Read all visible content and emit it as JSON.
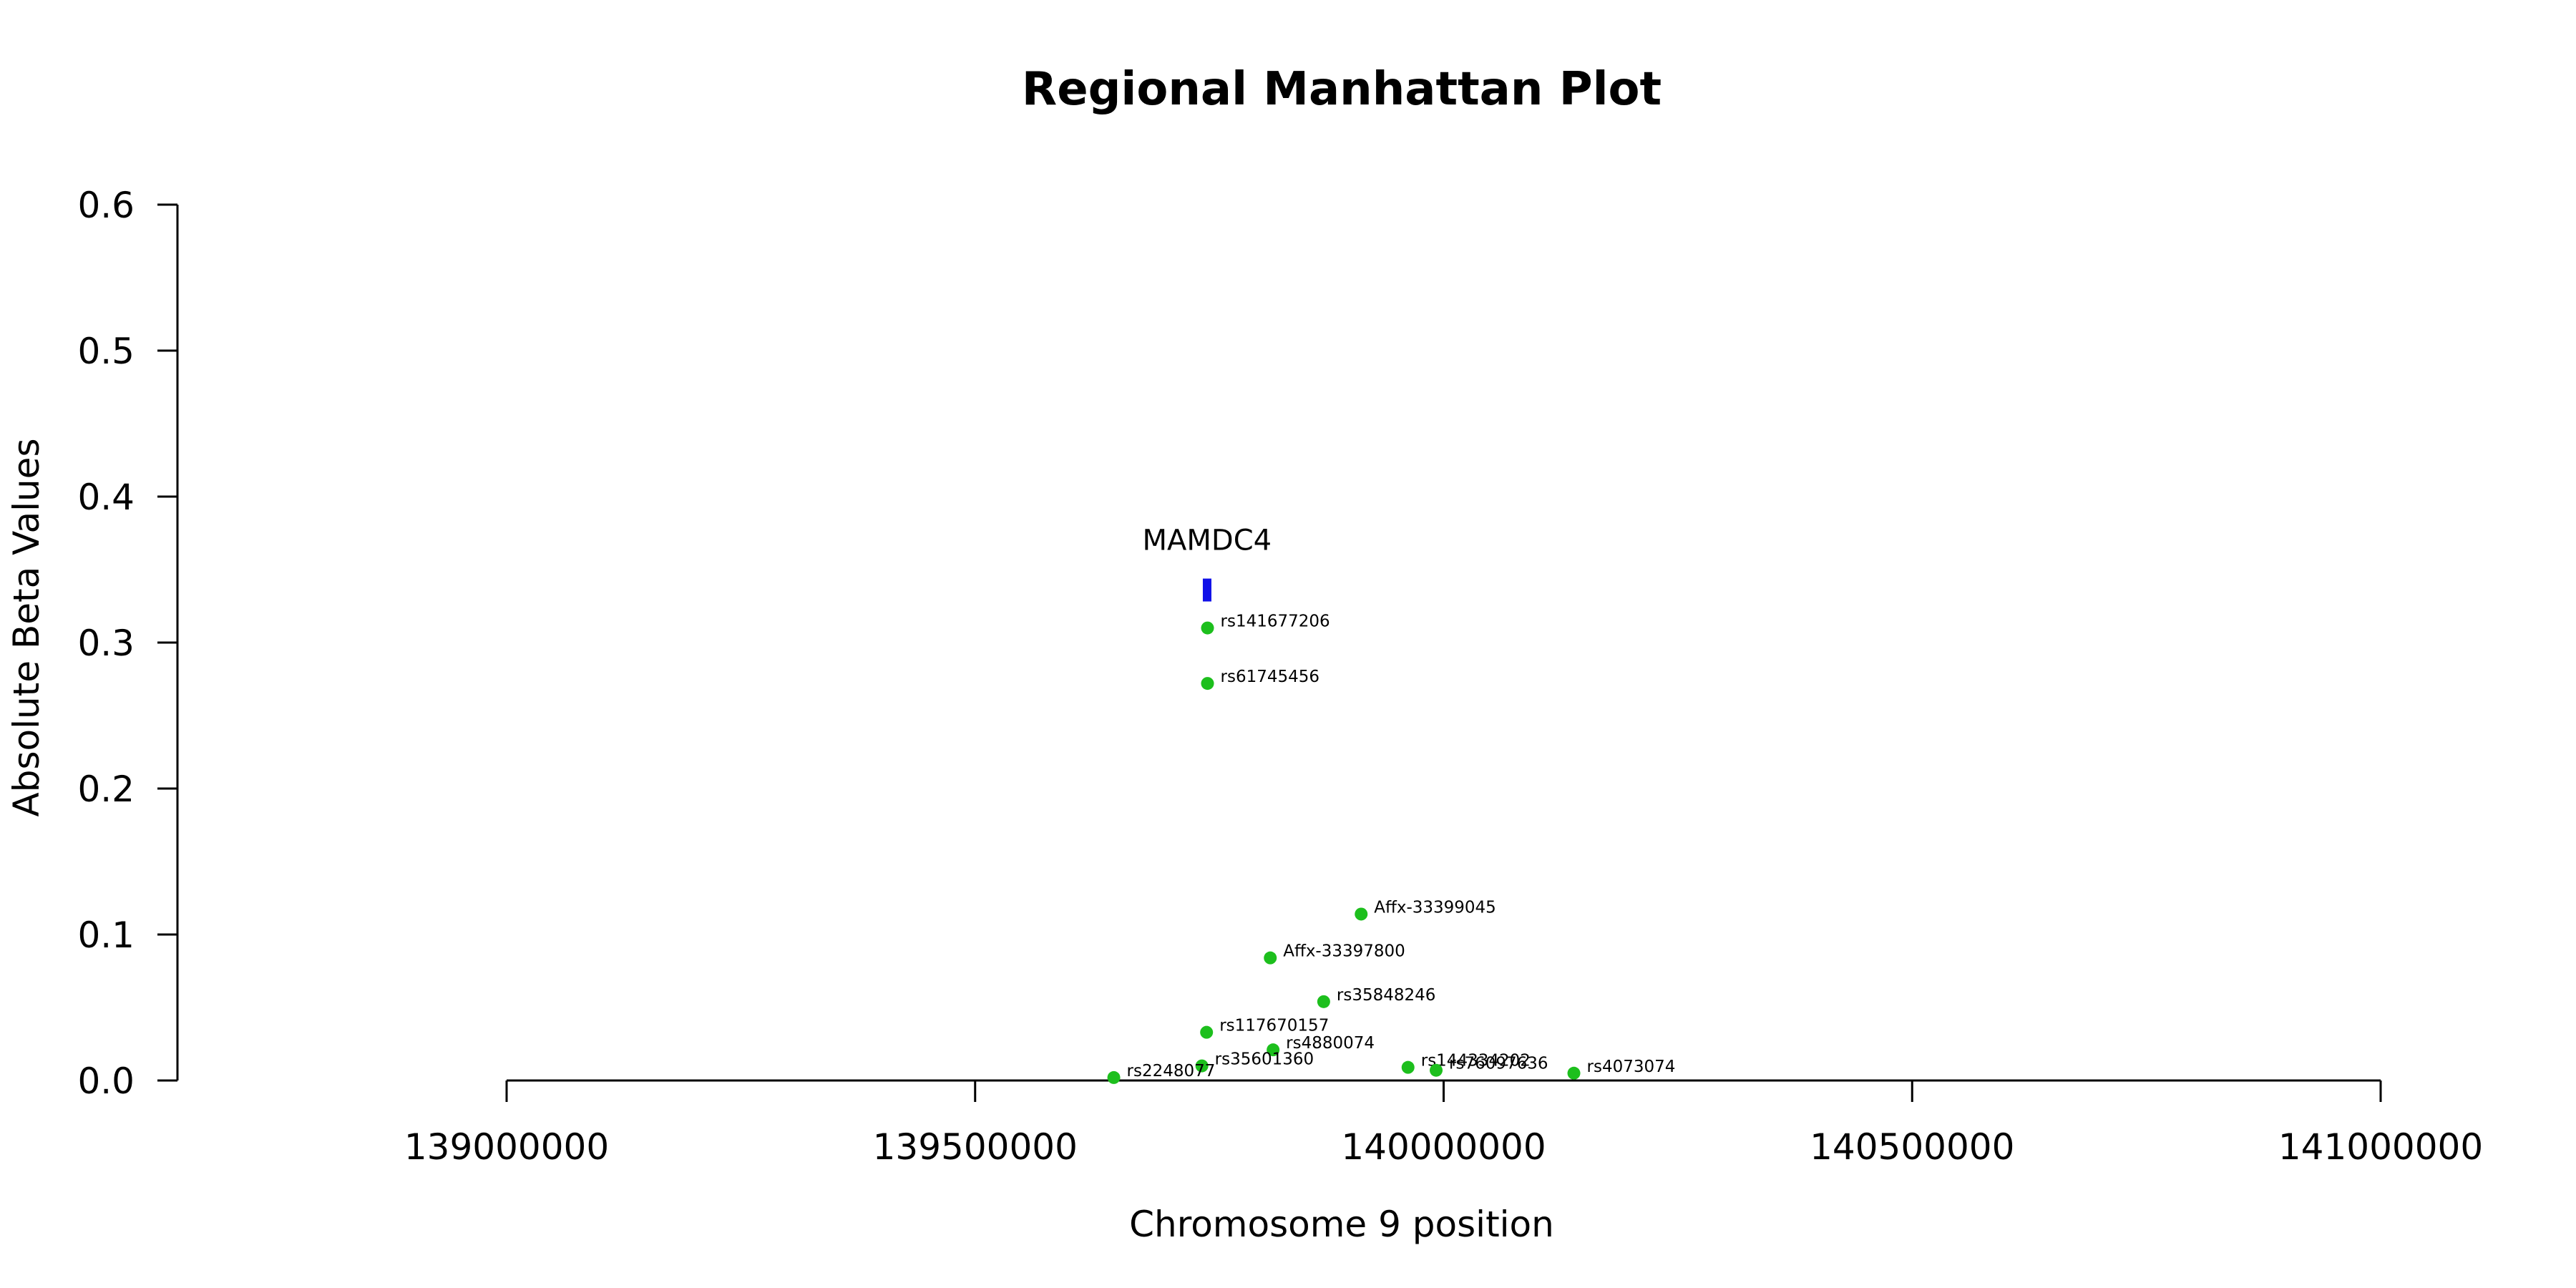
{
  "chart_data": {
    "type": "scatter",
    "title": "Regional Manhattan Plot",
    "xlabel": "Chromosome 9 position",
    "ylabel": "Absolute Beta Values",
    "xlim": [
      139000000,
      141000000
    ],
    "ylim": [
      0,
      0.6
    ],
    "x_ticks": [
      "139000000",
      "139500000",
      "140000000",
      "140500000",
      "141000000"
    ],
    "y_ticks": [
      "0.0",
      "0.1",
      "0.2",
      "0.3",
      "0.4",
      "0.5",
      "0.6"
    ],
    "grid": false,
    "point_color": "#1dbf1d",
    "gene_color": "#1010e8",
    "gene": {
      "name": "MAMDC4",
      "start": 139743000,
      "end": 139752000,
      "y": 0.336
    },
    "points": [
      {
        "label": "rs141677206",
        "x": 139748000,
        "y": 0.31
      },
      {
        "label": "rs61745456",
        "x": 139748000,
        "y": 0.272
      },
      {
        "label": "Affx-33399045",
        "x": 139912000,
        "y": 0.114
      },
      {
        "label": "Affx-33397800",
        "x": 139815000,
        "y": 0.084
      },
      {
        "label": "rs35848246",
        "x": 139872000,
        "y": 0.054
      },
      {
        "label": "rs117670157",
        "x": 139747000,
        "y": 0.033
      },
      {
        "label": "rs4880074",
        "x": 139818000,
        "y": 0.021
      },
      {
        "label": "rs35601360",
        "x": 139742000,
        "y": 0.01
      },
      {
        "label": "rs144334202",
        "x": 139962000,
        "y": 0.009
      },
      {
        "label": "rs76097636",
        "x": 139992000,
        "y": 0.007
      },
      {
        "label": "rs4073074",
        "x": 140139000,
        "y": 0.005
      },
      {
        "label": "rs2248077",
        "x": 139648000,
        "y": 0.002
      }
    ]
  }
}
